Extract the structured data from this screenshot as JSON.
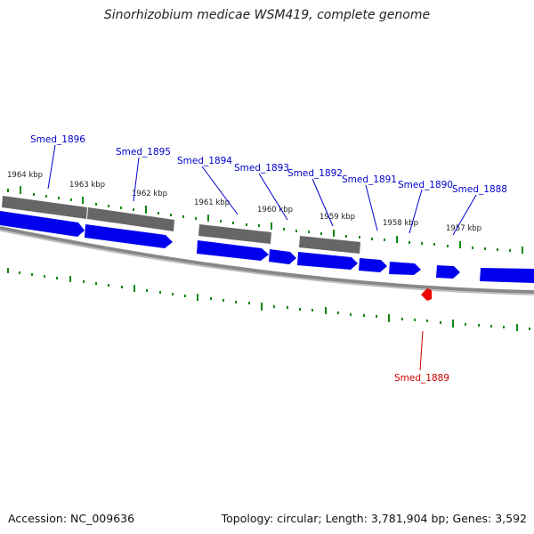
{
  "title": "Sinorhizobium medicae WSM419, complete genome",
  "footer": {
    "accession": "Accession: NC_009636",
    "summary": "Topology: circular; Length: 3,781,904 bp; Genes: 3,592"
  },
  "colors": {
    "forward_gene": "#0000ee",
    "reverse_gene": "#ee0000",
    "shaded_gene": "#666666",
    "backbone": "#888888",
    "tick": "#118811",
    "label_forward": "#0000cc",
    "label_reverse": "#cc0000"
  },
  "tick_labels": [
    "1964 kbp",
    "1963 kbp",
    "1962 kbp",
    "1961 kbp",
    "1960 kbp",
    "1959 kbp",
    "1958 kbp",
    "1957 kbp"
  ],
  "gene_labels": [
    {
      "name": "Smed_1896",
      "strand": "forward"
    },
    {
      "name": "Smed_1895",
      "strand": "forward"
    },
    {
      "name": "Smed_1894",
      "strand": "forward"
    },
    {
      "name": "Smed_1893",
      "strand": "forward"
    },
    {
      "name": "Smed_1892",
      "strand": "forward"
    },
    {
      "name": "Smed_1891",
      "strand": "forward"
    },
    {
      "name": "Smed_1890",
      "strand": "forward"
    },
    {
      "name": "Smed_1888",
      "strand": "forward"
    },
    {
      "name": "Smed_1889",
      "strand": "reverse"
    }
  ]
}
